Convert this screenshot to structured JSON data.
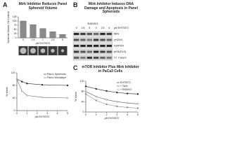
{
  "panels": {
    "a_label": "A",
    "b_label": "B",
    "c_label": "C"
  },
  "chart_data": [
    {
      "type": "bar",
      "title": "Mirk Inhibitor Reduces Panel Spheroid Volume",
      "y_label": "Spheroid Volume (% Control)",
      "x_label": "μM EHT5372",
      "categories": [
        "0",
        "0.5",
        "1",
        "2.5",
        "5"
      ],
      "values": [
        100,
        78,
        55,
        36,
        20
      ],
      "color": "#8a8a8a",
      "ylim": [
        0,
        125
      ],
      "yticks": [
        0,
        25,
        50,
        75,
        100,
        125
      ]
    },
    {
      "type": "line",
      "y_label": "% Viable",
      "x_label": "μM EHT5372",
      "x": [
        0,
        0.5,
        1,
        2.5,
        5
      ],
      "xlim": [
        0,
        5
      ],
      "xticks": [
        0,
        1,
        2,
        3,
        4,
        5
      ],
      "ylim": [
        0,
        120
      ],
      "yticks": [
        0,
        40,
        80,
        120
      ],
      "legend": "upper right",
      "series": [
        {
          "name": "Panc1 Spheroids",
          "color": "#222222",
          "values": [
            100,
            92,
            86,
            82,
            80
          ]
        },
        {
          "name": "Panc1 Monolayer",
          "color": "#666666",
          "values": [
            100,
            62,
            48,
            42,
            40
          ]
        }
      ]
    },
    {
      "type": "line",
      "title": "mTOR Inhibitor Plus Mirk Inhibitor in PaCa3 Cells",
      "y_label": "% Viable",
      "x_label": "μM EHT5372",
      "x": [
        0,
        1,
        2,
        3,
        4,
        5
      ],
      "xlim": [
        0,
        5
      ],
      "xticks": [
        0,
        1,
        2,
        3,
        4,
        5
      ],
      "ylim": [
        0,
        120
      ],
      "yticks": [
        0,
        40,
        80,
        120
      ],
      "series": [
        {
          "name": "EHT5372",
          "color": "#222222",
          "values": [
            100,
            90,
            82,
            76,
            72,
            70
          ]
        },
        {
          "name": "+ Torin",
          "color": "#555555",
          "values": [
            80,
            60,
            48,
            40,
            35,
            32
          ]
        },
        {
          "name": "+ RAD001",
          "color": "#888888",
          "values": [
            70,
            45,
            30,
            22,
            18,
            15
          ]
        }
      ]
    }
  ],
  "blot": {
    "title": "Mirk Inhibitor Induces DNA Damage and Apoptosis in Panel Spheroids",
    "cell_line": "RAD001",
    "lanes": [
      "0",
      "2.5",
      "5",
      "0",
      "2.5",
      "5"
    ],
    "unit": "μM EHT5372",
    "rows": [
      "Mirk",
      "γH2AX",
      "GAPDH",
      "pH3(S10)",
      "Cl. Casp3"
    ]
  }
}
